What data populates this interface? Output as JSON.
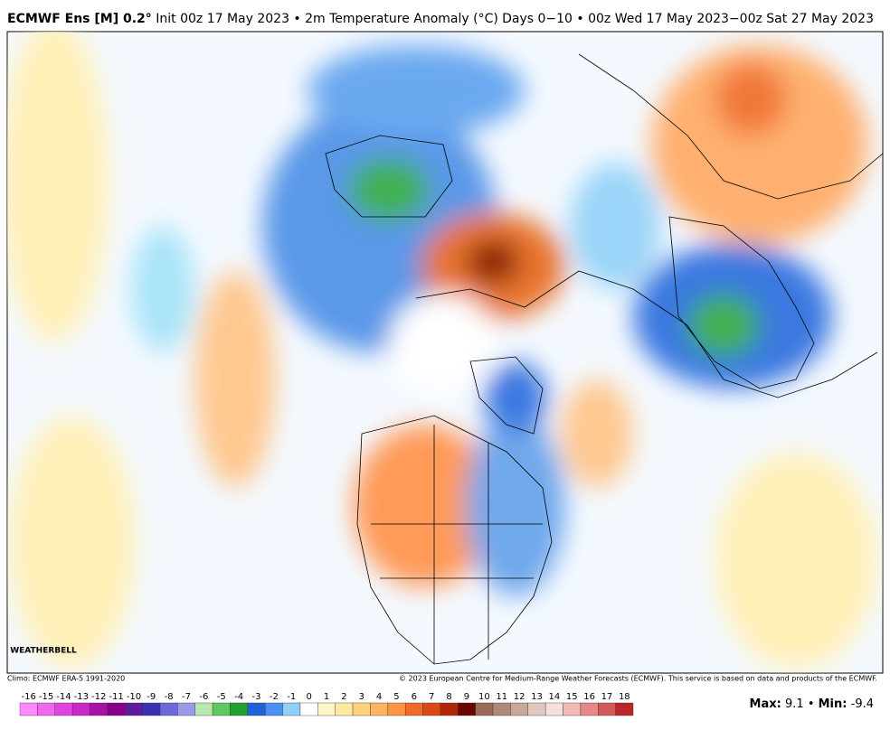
{
  "header": {
    "title_bold": "ECMWF Ens [M] 0.2°",
    "title_rest": "Init 00z 17 May 2023 • 2m Temperature Anomaly (°C)",
    "right": "Days 0−10 • 00z Wed 17 May 2023−00z Sat 27 May 2023"
  },
  "map": {
    "logo": "WEATHERBELL"
  },
  "footer": {
    "climo": "Climo: ECMWF ERA-5 1991-2020",
    "copyright": "© 2023 European Centre for Medium-Range Weather Forecasts (ECMWF). This service is based on data and products of the ECMWF."
  },
  "colorbar": {
    "labels": [
      -16,
      -15,
      -14,
      -13,
      -12,
      -11,
      -10,
      -9,
      -8,
      -7,
      -6,
      -5,
      -4,
      -3,
      -2,
      -1,
      0,
      1,
      2,
      3,
      4,
      5,
      6,
      7,
      8,
      9,
      10,
      11,
      12,
      13,
      14,
      15,
      16,
      17,
      18
    ],
    "colors": [
      "#ff88ff",
      "#f066f0",
      "#e044e0",
      "#c828c8",
      "#a810a8",
      "#880088",
      "#5c1c9c",
      "#3c30b0",
      "#6a6ad8",
      "#9a9ae8",
      "#b8e8b0",
      "#60c860",
      "#20a030",
      "#2060d8",
      "#4a90f0",
      "#90d0f8",
      "#ffffff",
      "#fff6c8",
      "#ffe8a0",
      "#ffd27e",
      "#ffb460",
      "#ff9444",
      "#f06a28",
      "#d84818",
      "#b02808",
      "#6a0800",
      "#9a6a5a",
      "#b08878",
      "#c8a898",
      "#e0c8c0",
      "#f4e0e0",
      "#f2b8b8",
      "#e48888",
      "#d45858",
      "#b82828"
    ]
  },
  "stats": {
    "max_label": "Max:",
    "max": 9.1,
    "sep": "•",
    "min_label": "Min:",
    "min": -9.4
  }
}
